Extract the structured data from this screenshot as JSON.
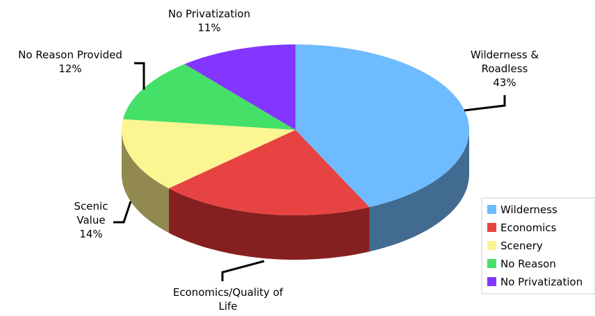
{
  "chart_data": {
    "type": "pie",
    "title": "",
    "slices": [
      {
        "key": "wilderness",
        "label": [
          "Wilderness &",
          "Roadless"
        ],
        "pct_label": "43%",
        "value": 43,
        "legend": "Wilderness",
        "color": "#6ebbff",
        "side_color": "#426b91"
      },
      {
        "key": "economics",
        "label": [
          "Economics/Quality of",
          "Life"
        ],
        "pct_label": "",
        "value": 20,
        "legend": "Economics",
        "color": "#e84343",
        "side_color": "#862020"
      },
      {
        "key": "scenery",
        "label": [
          "Scenic",
          "Value"
        ],
        "pct_label": "14%",
        "value": 14,
        "legend": "Scenery",
        "color": "#fbf592",
        "side_color": "#928951"
      },
      {
        "key": "no-reason",
        "label": [
          "No Reason Provided"
        ],
        "pct_label": "12%",
        "value": 12,
        "legend": "No Reason",
        "color": "#45e068",
        "side_color": "#2a8a40"
      },
      {
        "key": "no-privatization",
        "label": [
          "No Privatization"
        ],
        "pct_label": "11%",
        "value": 11,
        "legend": "No Privatization",
        "color": "#8236ff",
        "side_color": "#4a1d99"
      }
    ],
    "start_angle_deg": -90,
    "direction": "clockwise",
    "three_d": true,
    "legend_position": "bottom-right"
  }
}
